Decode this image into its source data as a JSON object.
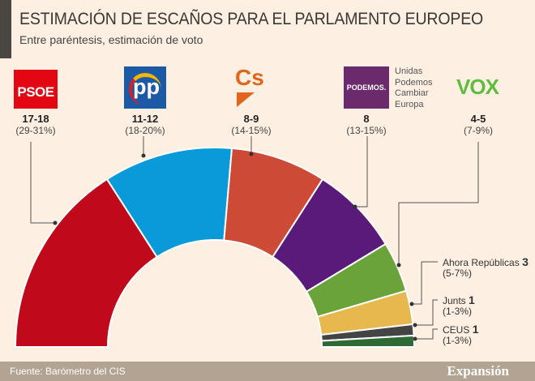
{
  "chart_data": {
    "type": "pie",
    "variant": "semicircle-donut",
    "title": "ESTIMACIÓN DE ESCAÑOS PARA EL PARLAMENTO EUROPEO",
    "subtitle": "Entre paréntesis, estimación de voto",
    "series": [
      {
        "name": "PSOE",
        "seats": "17-18",
        "vote": "(29-31%)",
        "seats_value": 17.5,
        "color": "#c0091b"
      },
      {
        "name": "PP",
        "seats": "11-12",
        "vote": "(18-20%)",
        "seats_value": 11.5,
        "color": "#0a9ad9"
      },
      {
        "name": "Cs",
        "seats": "8-9",
        "vote": "(14-15%)",
        "seats_value": 8.5,
        "color": "#cc4a36"
      },
      {
        "name": "Unidas Podemos Cambiar Europa",
        "seats": "8",
        "vote": "(13-15%)",
        "seats_value": 8,
        "color": "#5a1a7a"
      },
      {
        "name": "VOX",
        "seats": "4-5",
        "vote": "(7-9%)",
        "seats_value": 4.5,
        "color": "#6aa33a"
      },
      {
        "name": "Ahora Repúblicas",
        "seats": "3",
        "vote": "(5-7%)",
        "seats_value": 3,
        "color": "#e7b84d"
      },
      {
        "name": "Junts",
        "seats": "1",
        "vote": "(1-3%)",
        "seats_value": 1,
        "color": "#444444"
      },
      {
        "name": "CEUS",
        "seats": "1",
        "vote": "(1-3%)",
        "seats_value": 1,
        "color": "#2f6a35"
      }
    ]
  },
  "logos": {
    "psoe": "PSOE",
    "pp": "pp",
    "cs": "Cs",
    "podemos": "PODEMOS.",
    "podemos_name": [
      "Unidas",
      "Podemos",
      "Cambiar",
      "Europa"
    ],
    "vox": "VOX"
  },
  "footer": {
    "source": "Fuente: Barómetro del CIS",
    "brand": "Expansión"
  }
}
